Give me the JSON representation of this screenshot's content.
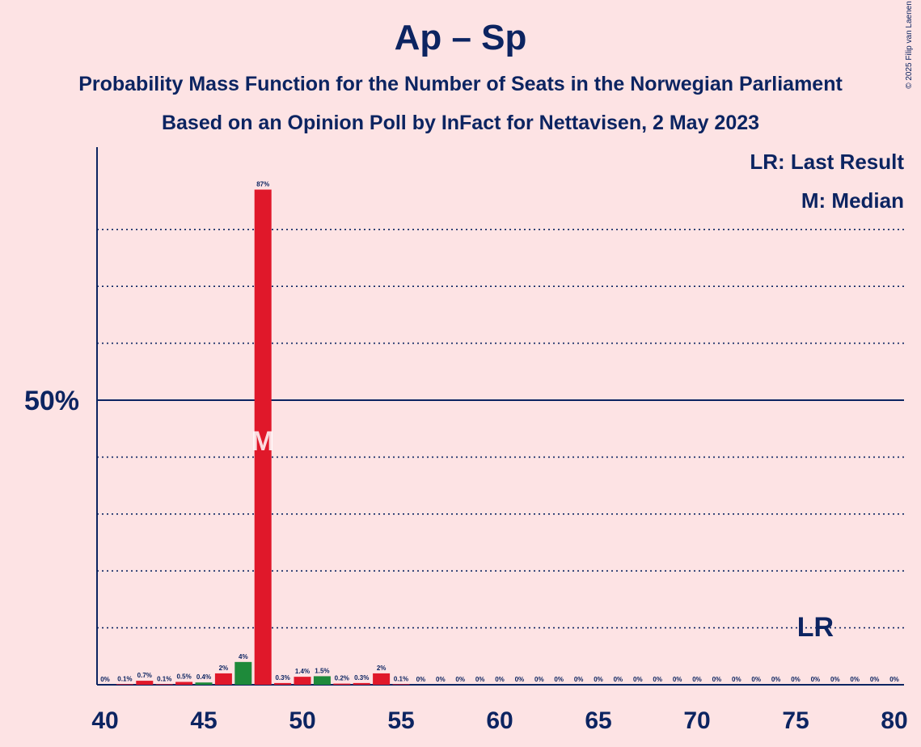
{
  "header": {
    "title": "Ap – Sp",
    "subtitle1": "Probability Mass Function for the Number of Seats in the Norwegian Parliament",
    "subtitle2": "Based on an Opinion Poll by InFact for Nettavisen, 2 May 2023",
    "copyright": "© 2025 Filip van Laenen"
  },
  "legend": {
    "lr": "LR: Last Result",
    "m": "M: Median"
  },
  "chart_data": {
    "type": "bar",
    "x": [
      40,
      41,
      42,
      43,
      44,
      45,
      46,
      47,
      48,
      49,
      50,
      51,
      52,
      53,
      54,
      55,
      56,
      57,
      58,
      59,
      60,
      61,
      62,
      63,
      64,
      65,
      66,
      67,
      68,
      69,
      70,
      71,
      72,
      73,
      74,
      75,
      76,
      77,
      78,
      79,
      80
    ],
    "values": [
      0,
      0.1,
      0.7,
      0.1,
      0.5,
      0.4,
      2,
      4,
      87,
      0.3,
      1.4,
      1.5,
      0.2,
      0.3,
      2,
      0.1,
      0,
      0,
      0,
      0,
      0,
      0,
      0,
      0,
      0,
      0,
      0,
      0,
      0,
      0,
      0,
      0,
      0,
      0,
      0,
      0,
      0,
      0,
      0,
      0,
      0
    ],
    "labels": [
      "0%",
      "0.1%",
      "0.7%",
      "0.1%",
      "0.5%",
      "0.4%",
      "2%",
      "4%",
      "87%",
      "0.3%",
      "1.4%",
      "1.5%",
      "0.2%",
      "0.3%",
      "2%",
      "0.1%",
      "0%",
      "0%",
      "0%",
      "0%",
      "0%",
      "0%",
      "0%",
      "0%",
      "0%",
      "0%",
      "0%",
      "0%",
      "0%",
      "0%",
      "0%",
      "0%",
      "0%",
      "0%",
      "0%",
      "0%",
      "0%",
      "0%",
      "0%",
      "0%",
      "0%"
    ],
    "bar_colors": {
      "red": "#e0182a",
      "green": "#1e8a3a"
    },
    "green_seats": [
      45,
      47,
      51
    ],
    "x_ticks": [
      40,
      45,
      50,
      55,
      60,
      65,
      70,
      75,
      80
    ],
    "x_tick_labels": [
      "40",
      "45",
      "50",
      "55",
      "60",
      "65",
      "70",
      "75",
      "80"
    ],
    "ylim": [
      0,
      92
    ],
    "y_tick_label": "50%",
    "y_tick_value": 50,
    "grid_values": [
      10,
      20,
      30,
      40,
      60,
      70,
      80
    ],
    "median_seat": 48,
    "median_marker": "M",
    "last_result_seat": 76,
    "last_result_marker": "LR",
    "axis_color": "#0c2461",
    "background": "#fde3e4"
  }
}
